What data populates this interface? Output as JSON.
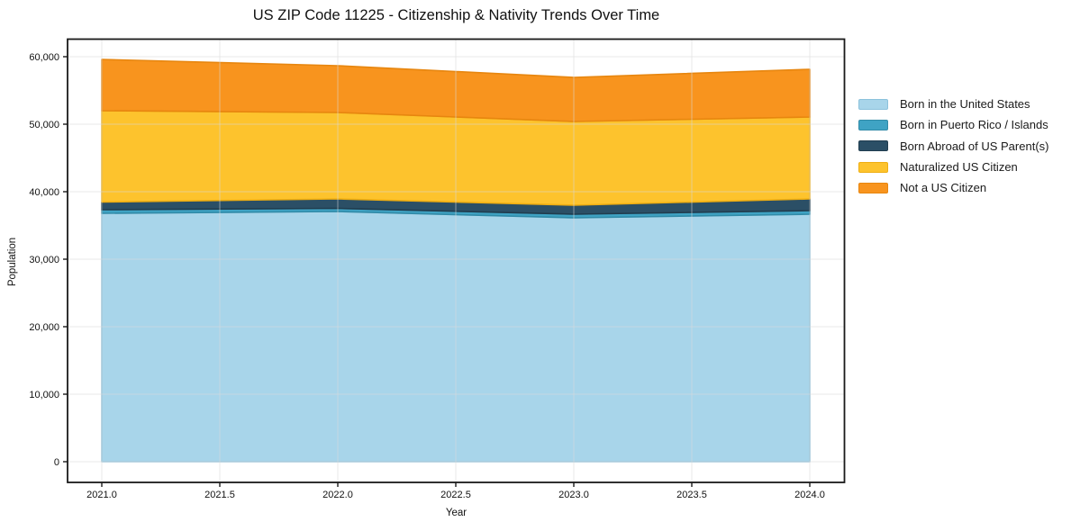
{
  "title": "US ZIP Code 11225 - Citizenship & Nativity Trends Over Time",
  "chart_data": {
    "type": "area",
    "stacked": true,
    "title": "US ZIP Code 11225 - Citizenship & Nativity Trends Over Time",
    "xlabel": "Year",
    "ylabel": "Population",
    "grid": true,
    "legend_position": "right-outside",
    "x": [
      2021,
      2022,
      2023,
      2024
    ],
    "series": [
      {
        "name": "Born in the United States",
        "color": "#a8d5ea",
        "edge": "#8cc2dc",
        "values": [
          36800,
          37070,
          36130,
          36670
        ]
      },
      {
        "name": "Born in Puerto Rico / Islands",
        "color": "#3fa3c4",
        "edge": "#318ba8",
        "values": [
          530,
          460,
          540,
          530
        ]
      },
      {
        "name": "Born Abroad of US Parent(s)",
        "color": "#2b4f66",
        "edge": "#213d4f",
        "values": [
          1140,
          1400,
          1330,
          1730
        ]
      },
      {
        "name": "Naturalized US Citizen",
        "color": "#fdc32d",
        "edge": "#efae12",
        "values": [
          13530,
          12800,
          12400,
          12140
        ]
      },
      {
        "name": "Not a US Citizen",
        "color": "#f8941e",
        "edge": "#e7860f",
        "values": [
          7600,
          6940,
          6530,
          7060
        ]
      }
    ],
    "totals": [
      59600,
      58670,
      56930,
      58130
    ],
    "x_ticks": {
      "values": [
        2021.0,
        2021.5,
        2022.0,
        2022.5,
        2023.0,
        2023.5,
        2024.0
      ],
      "labels": [
        "2021.0",
        "2021.5",
        "2022.0",
        "2022.5",
        "2023.0",
        "2023.5",
        "2024.0"
      ]
    },
    "y_ticks": {
      "values": [
        0,
        10000,
        20000,
        30000,
        40000,
        50000,
        60000
      ],
      "labels": [
        "0",
        "10,000",
        "20,000",
        "30,000",
        "40,000",
        "50,000",
        "60,000"
      ]
    },
    "xlim": [
      2020.85,
      2024.15
    ],
    "ylim": [
      -2980,
      62580
    ],
    "colors": {
      "spine": "#1a1a1a",
      "gridline": "#d9d9d9",
      "text": "#111111"
    }
  }
}
